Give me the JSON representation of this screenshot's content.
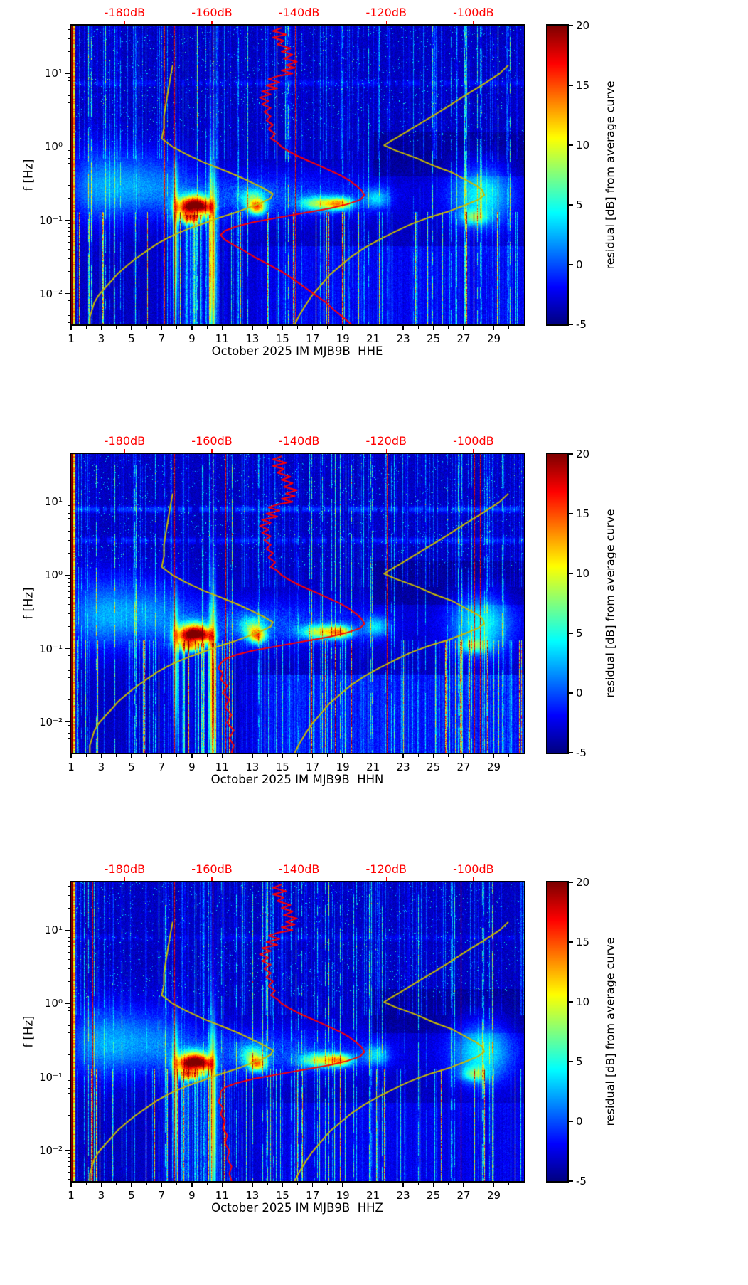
{
  "page": {
    "background": "#ffffff"
  },
  "shared": {
    "y_axis": {
      "range_hz": [
        0.0038,
        45
      ],
      "ticks": [
        {
          "label": "10⁻²",
          "value": 0.01
        },
        {
          "label": "10⁻¹",
          "value": 0.1
        },
        {
          "label": "10⁰",
          "value": 1
        },
        {
          "label": "10¹",
          "value": 10
        }
      ]
    },
    "x_axis": {
      "range_days": [
        1,
        31
      ],
      "major_ticks": [
        1,
        3,
        5,
        7,
        9,
        11,
        13,
        15,
        17,
        19,
        21,
        23,
        25,
        27,
        29
      ],
      "minor_ticks": [
        2,
        4,
        6,
        8,
        10,
        12,
        14,
        16,
        18,
        20,
        22,
        24,
        26,
        28,
        30
      ]
    },
    "top_axis": {
      "color": "#ff0000",
      "plot_edge_db": [
        -192.3,
        -88.4
      ],
      "ticks": [
        {
          "label": "-180dB",
          "value": -180
        },
        {
          "label": "-160dB",
          "value": -160
        },
        {
          "label": "-140dB",
          "value": -140
        },
        {
          "label": "-120dB",
          "value": -120
        },
        {
          "label": "-100dB",
          "value": -100
        }
      ]
    },
    "colorbar": {
      "label": "residual [dB] from average curve",
      "range": [
        -5,
        20
      ],
      "ticks": [
        -5,
        0,
        5,
        10,
        15,
        20
      ],
      "colormap": "jet"
    },
    "noise_models": {
      "low_noise_curve": {
        "color": "#c9bb00",
        "points": [
          [
            13,
            -169
          ],
          [
            9,
            -169.5
          ],
          [
            6,
            -170
          ],
          [
            4,
            -170.5
          ],
          [
            2.6,
            -171
          ],
          [
            1.8,
            -171
          ],
          [
            1.3,
            -171.5
          ],
          [
            1.0,
            -169
          ],
          [
            0.8,
            -166
          ],
          [
            0.62,
            -162
          ],
          [
            0.5,
            -158
          ],
          [
            0.4,
            -154
          ],
          [
            0.33,
            -151
          ],
          [
            0.27,
            -148
          ],
          [
            0.23,
            -146
          ],
          [
            0.2,
            -146.5
          ],
          [
            0.17,
            -149
          ],
          [
            0.145,
            -152
          ],
          [
            0.125,
            -155
          ],
          [
            0.105,
            -159
          ],
          [
            0.09,
            -162
          ],
          [
            0.078,
            -165
          ],
          [
            0.068,
            -167.5
          ],
          [
            0.058,
            -170
          ],
          [
            0.048,
            -172.5
          ],
          [
            0.038,
            -175
          ],
          [
            0.03,
            -177.5
          ],
          [
            0.024,
            -179.5
          ],
          [
            0.019,
            -181.5
          ],
          [
            0.015,
            -183
          ],
          [
            0.012,
            -184.5
          ],
          [
            0.0095,
            -186
          ],
          [
            0.0075,
            -187
          ],
          [
            0.006,
            -187.5
          ],
          [
            0.0048,
            -188
          ],
          [
            0.0038,
            -188
          ]
        ]
      },
      "high_noise_curve": {
        "color": "#c9bb00",
        "points": [
          [
            13,
            -92
          ],
          [
            10,
            -94
          ],
          [
            7,
            -98
          ],
          [
            5,
            -102
          ],
          [
            3.5,
            -106
          ],
          [
            2.5,
            -110
          ],
          [
            1.8,
            -114
          ],
          [
            1.4,
            -117
          ],
          [
            1.2,
            -119
          ],
          [
            1.05,
            -120.5
          ],
          [
            0.9,
            -118
          ],
          [
            0.7,
            -113
          ],
          [
            0.55,
            -109
          ],
          [
            0.45,
            -105
          ],
          [
            0.36,
            -102
          ],
          [
            0.3,
            -99.5
          ],
          [
            0.26,
            -98
          ],
          [
            0.22,
            -97.5
          ],
          [
            0.19,
            -99
          ],
          [
            0.16,
            -102
          ],
          [
            0.13,
            -106
          ],
          [
            0.11,
            -110
          ],
          [
            0.095,
            -113
          ],
          [
            0.085,
            -115
          ],
          [
            0.07,
            -118
          ],
          [
            0.055,
            -121.5
          ],
          [
            0.042,
            -125
          ],
          [
            0.032,
            -128
          ],
          [
            0.024,
            -130.5
          ],
          [
            0.018,
            -133
          ],
          [
            0.013,
            -135
          ],
          [
            0.0095,
            -137
          ],
          [
            0.007,
            -138.5
          ],
          [
            0.005,
            -140
          ],
          [
            0.0038,
            -141
          ]
        ]
      }
    },
    "average_psd_curve_head": [
      [
        42,
        -144
      ],
      [
        38,
        -146
      ],
      [
        34,
        -143
      ],
      [
        31,
        -146
      ],
      [
        28,
        -143.5
      ],
      [
        25,
        -145
      ],
      [
        22,
        -142
      ],
      [
        20,
        -144
      ],
      [
        18,
        -141.5
      ],
      [
        16,
        -143.5
      ],
      [
        14.5,
        -140.5
      ],
      [
        13,
        -143
      ],
      [
        12,
        -141
      ],
      [
        11,
        -144
      ],
      [
        10,
        -141.5
      ],
      [
        9.2,
        -145
      ],
      [
        8.4,
        -147
      ],
      [
        7.6,
        -144.5
      ],
      [
        6.9,
        -147.5
      ],
      [
        6.3,
        -145
      ],
      [
        5.7,
        -148.5
      ],
      [
        5.2,
        -146.5
      ],
      [
        4.7,
        -149
      ],
      [
        4.2,
        -147
      ],
      [
        3.8,
        -148.5
      ],
      [
        3.4,
        -146.5
      ],
      [
        3.0,
        -148
      ],
      [
        2.6,
        -146.5
      ],
      [
        2.3,
        -147.5
      ],
      [
        2.0,
        -146
      ],
      [
        1.75,
        -147
      ],
      [
        1.5,
        -145.5
      ],
      [
        1.3,
        -146.5
      ],
      [
        1.15,
        -145
      ],
      [
        1.0,
        -144
      ],
      [
        0.88,
        -142.5
      ],
      [
        0.76,
        -140.5
      ],
      [
        0.65,
        -138
      ],
      [
        0.56,
        -135.5
      ],
      [
        0.48,
        -133
      ],
      [
        0.41,
        -130.5
      ],
      [
        0.35,
        -128.5
      ],
      [
        0.3,
        -127
      ],
      [
        0.26,
        -125.8
      ],
      [
        0.22,
        -125
      ],
      [
        0.19,
        -126
      ],
      [
        0.165,
        -129
      ],
      [
        0.145,
        -133
      ],
      [
        0.125,
        -139
      ],
      [
        0.108,
        -145
      ],
      [
        0.094,
        -150.5
      ],
      [
        0.082,
        -154.5
      ],
      [
        0.072,
        -157
      ],
      [
        0.063,
        -158
      ]
    ],
    "texture": {
      "red_line_days": [
        7.85,
        10.35
      ],
      "hotspots": [
        {
          "d": 8.6,
          "f": 0.15,
          "a": 17,
          "sd": 0.55,
          "sf": 0.1
        },
        {
          "d": 9.3,
          "f": 0.17,
          "a": 12,
          "sd": 0.45,
          "sf": 0.09
        },
        {
          "d": 9.9,
          "f": 0.15,
          "a": 13,
          "sd": 0.4,
          "sf": 0.08
        },
        {
          "d": 8.9,
          "f": 0.105,
          "a": 9,
          "sd": 0.5,
          "sf": 0.05
        },
        {
          "d": 13.3,
          "f": 0.15,
          "a": 13,
          "sd": 0.4,
          "sf": 0.07
        },
        {
          "d": 13.0,
          "f": 0.2,
          "a": 7,
          "sd": 0.6,
          "sf": 0.1
        },
        {
          "d": 17.4,
          "f": 0.17,
          "a": 10,
          "sd": 0.9,
          "sf": 0.07
        },
        {
          "d": 18.8,
          "f": 0.17,
          "a": 12,
          "sd": 0.6,
          "sf": 0.06
        },
        {
          "d": 21.2,
          "f": 0.2,
          "a": 6,
          "sd": 0.6,
          "sf": 0.1
        },
        {
          "d": 28.2,
          "f": 0.22,
          "a": 8,
          "sd": 1.4,
          "sf": 0.3
        },
        {
          "d": 27.7,
          "f": 0.11,
          "a": 7,
          "sd": 0.6,
          "sf": 0.07
        },
        {
          "d": 2.8,
          "f": 0.3,
          "a": 4,
          "sd": 1.5,
          "sf": 0.35
        },
        {
          "d": 6.0,
          "f": 0.35,
          "a": 3.5,
          "sd": 2.0,
          "sf": 0.3
        },
        {
          "d": 10.35,
          "f": 0.03,
          "a": 14,
          "sd": 0.16,
          "sf": 0.9
        },
        {
          "d": 7.9,
          "f": 0.05,
          "a": 10,
          "sd": 0.12,
          "sf": 0.7
        }
      ]
    }
  },
  "chart_data": [
    {
      "type": "heatmap",
      "station": "IM MJB9B",
      "channel": "HHE",
      "month": "October 2025",
      "xlabel": "October 2025 IM MJB9B  HHE",
      "ylabel": "f [Hz]",
      "average_psd_curve_db": {
        "color": "#ff0000",
        "tail_points": [
          [
            0.054,
            -157
          ],
          [
            0.046,
            -155
          ],
          [
            0.038,
            -152.5
          ],
          [
            0.031,
            -150
          ],
          [
            0.025,
            -147
          ],
          [
            0.02,
            -144
          ],
          [
            0.016,
            -141.5
          ],
          [
            0.0125,
            -139
          ],
          [
            0.0098,
            -136.5
          ],
          [
            0.0077,
            -134
          ],
          [
            0.006,
            -132
          ],
          [
            0.0048,
            -130
          ],
          [
            0.0038,
            -128
          ]
        ]
      },
      "texture_features": {
        "wash_amp": 2.6,
        "hbands": [
          {
            "f": 7.5,
            "a": 1.6
          }
        ]
      }
    },
    {
      "type": "heatmap",
      "station": "IM MJB9B",
      "channel": "HHN",
      "month": "October 2025",
      "xlabel": "October 2025 IM MJB9B  HHN",
      "ylabel": "f [Hz]",
      "average_psd_curve_db": {
        "color": "#ff0000",
        "tail_points": [
          [
            0.054,
            -158.5
          ],
          [
            0.046,
            -157.5
          ],
          [
            0.038,
            -158
          ],
          [
            0.031,
            -156.5
          ],
          [
            0.025,
            -157.5
          ],
          [
            0.02,
            -156
          ],
          [
            0.016,
            -157
          ],
          [
            0.0125,
            -155.5
          ],
          [
            0.0098,
            -156.5
          ],
          [
            0.0077,
            -155
          ],
          [
            0.006,
            -156
          ],
          [
            0.0048,
            -155
          ],
          [
            0.0038,
            -155.5
          ]
        ]
      },
      "texture_features": {
        "wash_amp": 4.0,
        "hbands": [
          {
            "f": 8,
            "a": 3.0
          },
          {
            "f": 3,
            "a": 2.2
          }
        ]
      }
    },
    {
      "type": "heatmap",
      "station": "IM MJB9B",
      "channel": "HHZ",
      "month": "October 2025",
      "xlabel": "October 2025 IM MJB9B  HHZ",
      "ylabel": "f [Hz]",
      "average_psd_curve_db": {
        "color": "#ff0000",
        "tail_points": [
          [
            0.054,
            -158
          ],
          [
            0.046,
            -158.5
          ],
          [
            0.038,
            -157.5
          ],
          [
            0.031,
            -158
          ],
          [
            0.025,
            -157
          ],
          [
            0.02,
            -157.5
          ],
          [
            0.016,
            -156.5
          ],
          [
            0.0125,
            -157
          ],
          [
            0.0098,
            -156
          ],
          [
            0.0077,
            -156.5
          ],
          [
            0.006,
            -155.5
          ],
          [
            0.0048,
            -156
          ],
          [
            0.0038,
            -155.5
          ]
        ]
      },
      "texture_features": {
        "wash_amp": 2.0,
        "hbands": [
          {
            "f": 8,
            "a": 1.2
          }
        ]
      }
    }
  ]
}
